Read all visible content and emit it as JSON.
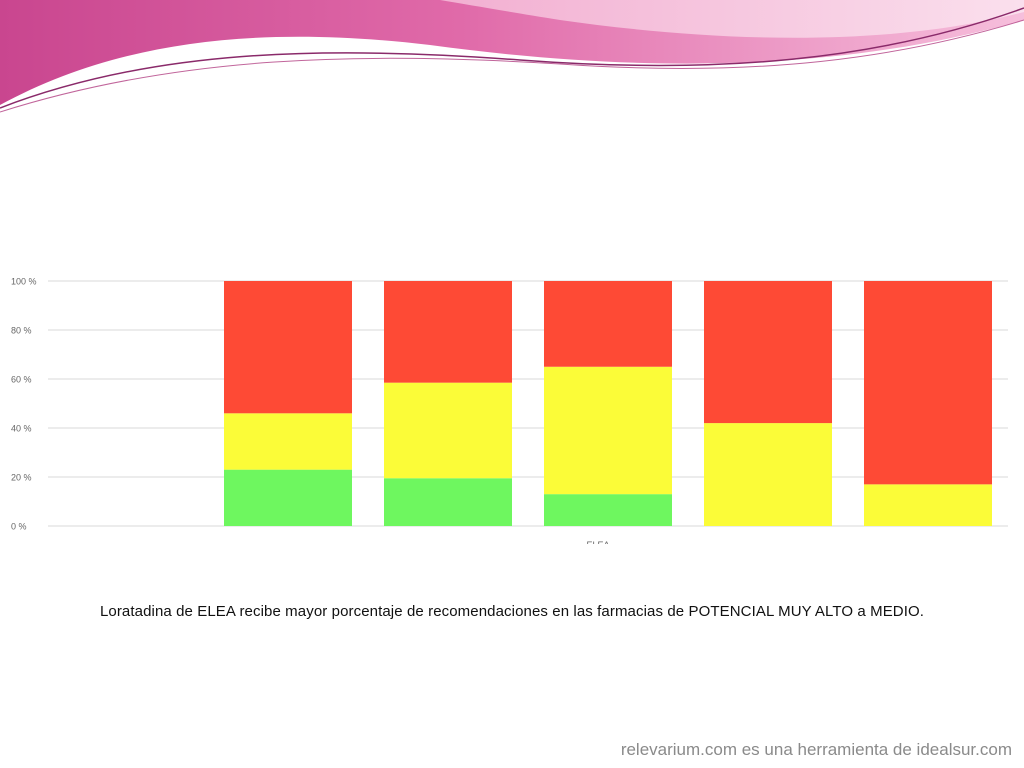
{
  "slide": {
    "caption": "Loratadina de ELEA recibe mayor porcentaje de recomendaciones en las farmacias de POTENCIAL MUY ALTO a MEDIO.",
    "footer": "relevarium.com es una herramienta de idealsur.com"
  },
  "colors": {
    "header_pink": "#d9589a",
    "header_light": "#f0a9cf",
    "header_line": "#8a2a6a",
    "green": "#6ef75f",
    "yellow": "#fbfc38",
    "red": "#fe4a35",
    "grid": "#d8d8d8",
    "tick_text": "#666666"
  },
  "chart_data": {
    "type": "bar",
    "stacked": true,
    "percent": true,
    "xlabel": "ELEA",
    "ylim": [
      0,
      100
    ],
    "y_ticks": [
      "0 %",
      "20 %",
      "40 %",
      "60 %",
      "80 %",
      "100 %"
    ],
    "grid": true,
    "legend": "none",
    "categories": [
      "",
      "",
      "",
      "",
      "",
      ""
    ],
    "series": [
      {
        "color": "#6ef75f",
        "values": [
          0,
          23,
          19.5,
          13,
          0,
          0
        ]
      },
      {
        "color": "#fbfc38",
        "values": [
          0,
          23,
          39,
          52,
          42,
          17
        ]
      },
      {
        "color": "#fe4a35",
        "values": [
          0,
          54,
          41.5,
          35,
          58,
          83
        ]
      }
    ]
  }
}
